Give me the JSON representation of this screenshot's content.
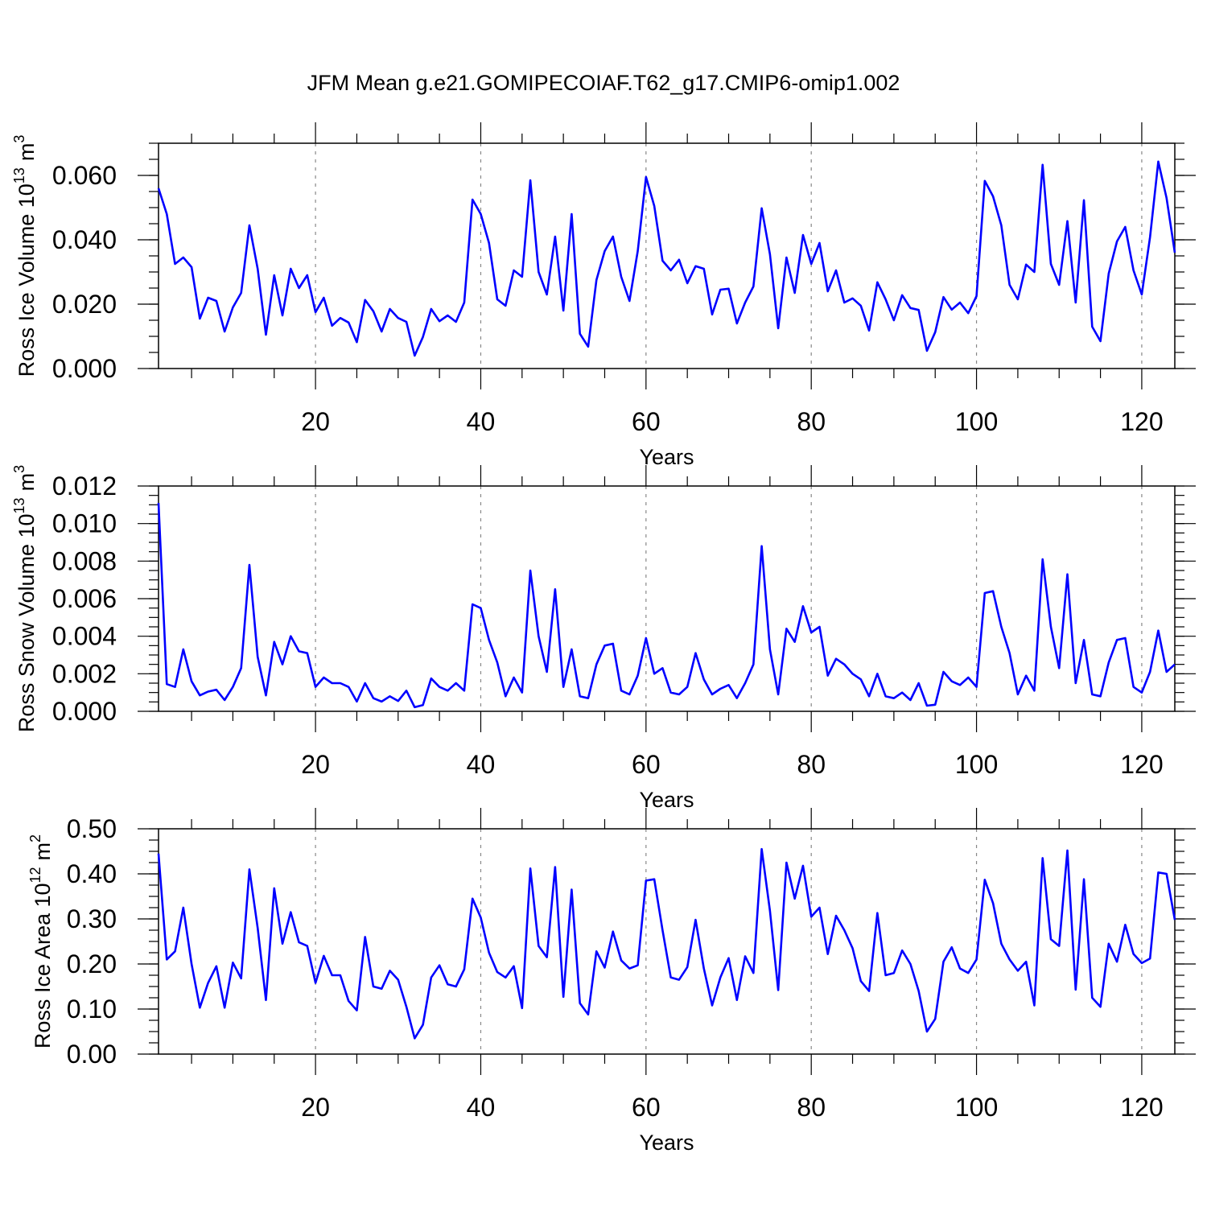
{
  "chart_data": [
    {
      "type": "line",
      "title": "JFM Mean g.e21.GOMIPECOIAF.T62_g17.CMIP6-omip1.002",
      "xlabel": "Years",
      "ylabel": "Ross Ice Volume 10",
      "ylabel_exp": "13",
      "ylabel_unit": "m",
      "ylabel_unit_exp": "3",
      "xlim": [
        1,
        124
      ],
      "ylim": [
        0,
        0.07
      ],
      "xticks": [
        "20",
        "40",
        "60",
        "80",
        "100",
        "120"
      ],
      "yticks": [
        "0.000",
        "0.020",
        "0.040",
        "0.060"
      ],
      "line_color": "#0000ff",
      "grid": "dashed vertical at major x ticks",
      "series": [
        {
          "name": "Ross Ice Volume",
          "x_start": 1,
          "values": [
            0.056,
            0.048,
            0.0325,
            0.0345,
            0.0315,
            0.0155,
            0.022,
            0.021,
            0.0115,
            0.019,
            0.0235,
            0.0445,
            0.031,
            0.0105,
            0.029,
            0.0165,
            0.031,
            0.025,
            0.029,
            0.0175,
            0.022,
            0.0133,
            0.0157,
            0.0143,
            0.0082,
            0.0213,
            0.0178,
            0.0115,
            0.0185,
            0.0157,
            0.0145,
            0.004,
            0.0098,
            0.0185,
            0.0147,
            0.0165,
            0.0145,
            0.0205,
            0.0525,
            0.048,
            0.039,
            0.0215,
            0.0195,
            0.0305,
            0.0285,
            0.0585,
            0.03,
            0.023,
            0.041,
            0.018,
            0.048,
            0.0108,
            0.0068,
            0.0275,
            0.0365,
            0.041,
            0.0285,
            0.021,
            0.0365,
            0.0595,
            0.0505,
            0.0335,
            0.0305,
            0.0338,
            0.0265,
            0.0318,
            0.031,
            0.0168,
            0.0245,
            0.0248,
            0.014,
            0.0205,
            0.0255,
            0.0498,
            0.0355,
            0.0125,
            0.0345,
            0.0235,
            0.0415,
            0.0325,
            0.039,
            0.024,
            0.0305,
            0.0205,
            0.0218,
            0.0195,
            0.0118,
            0.0268,
            0.0215,
            0.015,
            0.0228,
            0.0188,
            0.0182,
            0.0055,
            0.0113,
            0.0222,
            0.0183,
            0.0205,
            0.0172,
            0.0225,
            0.0583,
            0.0535,
            0.0445,
            0.026,
            0.0215,
            0.0323,
            0.03,
            0.0633,
            0.0325,
            0.026,
            0.0458,
            0.0205,
            0.0523,
            0.013,
            0.0085,
            0.0295,
            0.0395,
            0.044,
            0.0305,
            0.023,
            0.0408,
            0.0643,
            0.053,
            0.036
          ]
        }
      ]
    },
    {
      "type": "line",
      "xlabel": "Years",
      "ylabel": "Ross Snow Volume 10",
      "ylabel_exp": "13",
      "ylabel_unit": "m",
      "ylabel_unit_exp": "3",
      "xlim": [
        1,
        124
      ],
      "ylim": [
        0,
        0.012
      ],
      "xticks": [
        "20",
        "40",
        "60",
        "80",
        "100",
        "120"
      ],
      "yticks": [
        "0.000",
        "0.002",
        "0.004",
        "0.006",
        "0.008",
        "0.010",
        "0.012"
      ],
      "line_color": "#0000ff",
      "grid": "dashed vertical at major x ticks",
      "series": [
        {
          "name": "Ross Snow Volume",
          "x_start": 1,
          "values": [
            0.0111,
            0.00145,
            0.0013,
            0.0033,
            0.0016,
            0.00085,
            0.00105,
            0.00115,
            0.0006,
            0.0013,
            0.0023,
            0.0078,
            0.0029,
            0.00085,
            0.0037,
            0.0025,
            0.004,
            0.0032,
            0.0031,
            0.0013,
            0.0018,
            0.0015,
            0.0015,
            0.0013,
            0.00052,
            0.0015,
            0.0007,
            0.00052,
            0.0008,
            0.00055,
            0.0011,
            0.00022,
            0.00033,
            0.00175,
            0.0013,
            0.0011,
            0.0015,
            0.0011,
            0.0057,
            0.0055,
            0.0038,
            0.0026,
            0.0008,
            0.0018,
            0.001,
            0.0075,
            0.004,
            0.0021,
            0.0065,
            0.0013,
            0.0033,
            0.0008,
            0.0007,
            0.0025,
            0.0035,
            0.0036,
            0.0011,
            0.0009,
            0.0019,
            0.0039,
            0.002,
            0.0023,
            0.001,
            0.0009,
            0.0013,
            0.0031,
            0.0017,
            0.0009,
            0.0012,
            0.0014,
            0.0007,
            0.0015,
            0.0025,
            0.0088,
            0.0033,
            0.0009,
            0.0044,
            0.0037,
            0.0056,
            0.0042,
            0.0045,
            0.0019,
            0.0028,
            0.0025,
            0.002,
            0.0017,
            0.0008,
            0.002,
            0.0008,
            0.0007,
            0.001,
            0.0006,
            0.0015,
            0.0003,
            0.00035,
            0.0021,
            0.0016,
            0.0014,
            0.0018,
            0.0013,
            0.0063,
            0.0064,
            0.0045,
            0.0031,
            0.0009,
            0.0019,
            0.0011,
            0.0081,
            0.0045,
            0.0023,
            0.0073,
            0.0015,
            0.0038,
            0.0009,
            0.0008,
            0.0026,
            0.0038,
            0.0039,
            0.0013,
            0.001,
            0.0021,
            0.0043,
            0.0021,
            0.0025
          ]
        }
      ]
    },
    {
      "type": "line",
      "xlabel": "Years",
      "ylabel": "Ross Ice Area 10",
      "ylabel_exp": "12",
      "ylabel_unit": "m",
      "ylabel_unit_exp": "2",
      "xlim": [
        1,
        124
      ],
      "ylim": [
        0,
        0.5
      ],
      "xticks": [
        "20",
        "40",
        "60",
        "80",
        "100",
        "120"
      ],
      "yticks": [
        "0.00",
        "0.10",
        "0.20",
        "0.30",
        "0.40",
        "0.50"
      ],
      "line_color": "#0000ff",
      "grid": "dashed vertical at major x ticks",
      "series": [
        {
          "name": "Ross Ice Area",
          "x_start": 1,
          "values": [
            0.445,
            0.21,
            0.228,
            0.325,
            0.2,
            0.103,
            0.158,
            0.195,
            0.103,
            0.203,
            0.168,
            0.41,
            0.28,
            0.12,
            0.368,
            0.245,
            0.315,
            0.248,
            0.24,
            0.158,
            0.218,
            0.175,
            0.175,
            0.118,
            0.097,
            0.26,
            0.15,
            0.145,
            0.185,
            0.165,
            0.105,
            0.035,
            0.065,
            0.17,
            0.197,
            0.155,
            0.15,
            0.188,
            0.345,
            0.303,
            0.225,
            0.182,
            0.17,
            0.195,
            0.102,
            0.412,
            0.24,
            0.215,
            0.415,
            0.127,
            0.365,
            0.113,
            0.088,
            0.228,
            0.192,
            0.272,
            0.208,
            0.19,
            0.197,
            0.385,
            0.388,
            0.275,
            0.17,
            0.165,
            0.193,
            0.298,
            0.19,
            0.108,
            0.17,
            0.213,
            0.12,
            0.217,
            0.18,
            0.455,
            0.318,
            0.142,
            0.425,
            0.345,
            0.418,
            0.305,
            0.325,
            0.222,
            0.307,
            0.275,
            0.235,
            0.162,
            0.14,
            0.313,
            0.175,
            0.18,
            0.23,
            0.2,
            0.14,
            0.05,
            0.078,
            0.205,
            0.237,
            0.19,
            0.18,
            0.21,
            0.387,
            0.335,
            0.245,
            0.21,
            0.185,
            0.205,
            0.108,
            0.435,
            0.255,
            0.24,
            0.452,
            0.143,
            0.388,
            0.125,
            0.105,
            0.245,
            0.205,
            0.287,
            0.222,
            0.202,
            0.212,
            0.403,
            0.4,
            0.298
          ]
        }
      ]
    }
  ]
}
